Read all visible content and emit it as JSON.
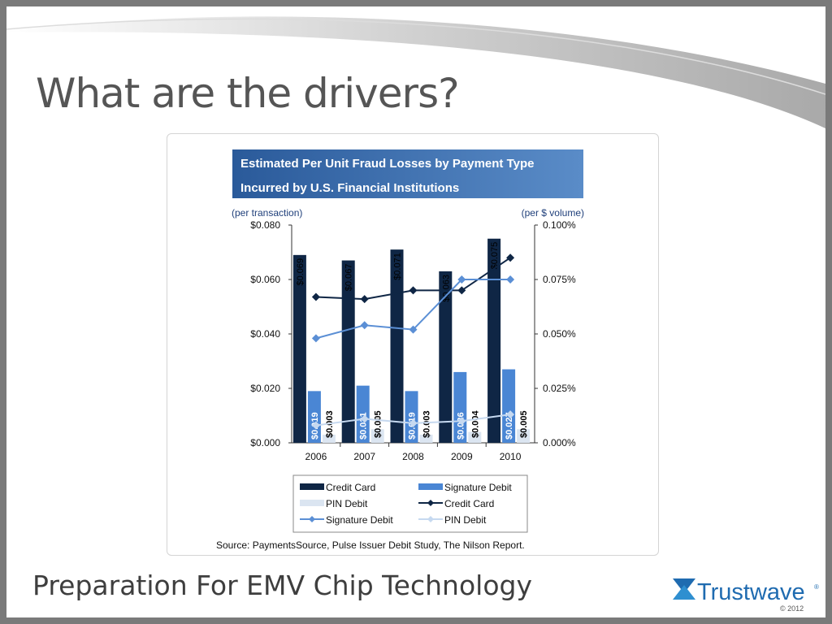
{
  "slide": {
    "title": "What are the drivers?",
    "footer_title": "Preparation For EMV Chip Technology",
    "logo_text": "Trustwave",
    "logo_mark": "®",
    "copyright": "© 2012"
  },
  "colors": {
    "credit_bar": "#0f2645",
    "sig_bar": "#4a86d4",
    "pin_bar": "#dbe5f1",
    "credit_line": "#0f2645",
    "sig_line": "#5b8fd5",
    "pin_line": "#c6d9f0",
    "header_start": "#2a5a9a",
    "header_end": "#5a8cc8",
    "logo": "#1f6bb0"
  },
  "chart_data": {
    "type": "bar",
    "title_lines": [
      "Estimated Per Unit Fraud Losses  by Payment Type",
      "Incurred by U.S. Financial  Institutions"
    ],
    "left_unit": "(per transaction)",
    "right_unit": "(per $ volume)",
    "categories": [
      "2006",
      "2007",
      "2008",
      "2009",
      "2010"
    ],
    "left_axis": {
      "ylim": [
        0,
        0.08
      ],
      "ticks": [
        0,
        0.02,
        0.04,
        0.06,
        0.08
      ],
      "tick_labels": [
        "$0.000",
        "$0.020",
        "$0.040",
        "$0.060",
        "$0.080"
      ]
    },
    "right_axis": {
      "ylim": [
        0,
        0.1
      ],
      "ticks": [
        0,
        0.025,
        0.05,
        0.075,
        0.1
      ],
      "tick_labels": [
        "0.000%",
        "0.025%",
        "0.050%",
        "0.075%",
        "0.100%"
      ]
    },
    "bar_series": [
      {
        "name": "Credit Card",
        "values": [
          0.069,
          0.067,
          0.071,
          0.063,
          0.075
        ],
        "labels": [
          "$0.069",
          "$0.067",
          "$0.071",
          "$0.063",
          "$0.075"
        ]
      },
      {
        "name": "Signature Debit",
        "values": [
          0.019,
          0.021,
          0.019,
          0.026,
          0.027
        ],
        "labels": [
          "$0.019",
          "$0.021",
          "$0.019",
          "$0.026",
          "$0.027"
        ]
      },
      {
        "name": "PIN Debit",
        "values": [
          0.003,
          0.005,
          0.003,
          0.004,
          0.005
        ],
        "labels": [
          "$0.003",
          "$0.005",
          "$0.003",
          "$0.004",
          "$0.005"
        ]
      }
    ],
    "line_series": [
      {
        "name": "Credit Card",
        "values": [
          0.067,
          0.066,
          0.07,
          0.07,
          0.085
        ]
      },
      {
        "name": "Signature Debit",
        "values": [
          0.048,
          0.054,
          0.052,
          0.075,
          0.075
        ]
      },
      {
        "name": "PIN Debit",
        "values": [
          0.008,
          0.011,
          0.009,
          0.01,
          0.013
        ]
      }
    ],
    "legend_position": "bottom",
    "grid": false,
    "source": "Source: PaymentsSource, Pulse Issuer Debit Study, The Nilson Report."
  }
}
